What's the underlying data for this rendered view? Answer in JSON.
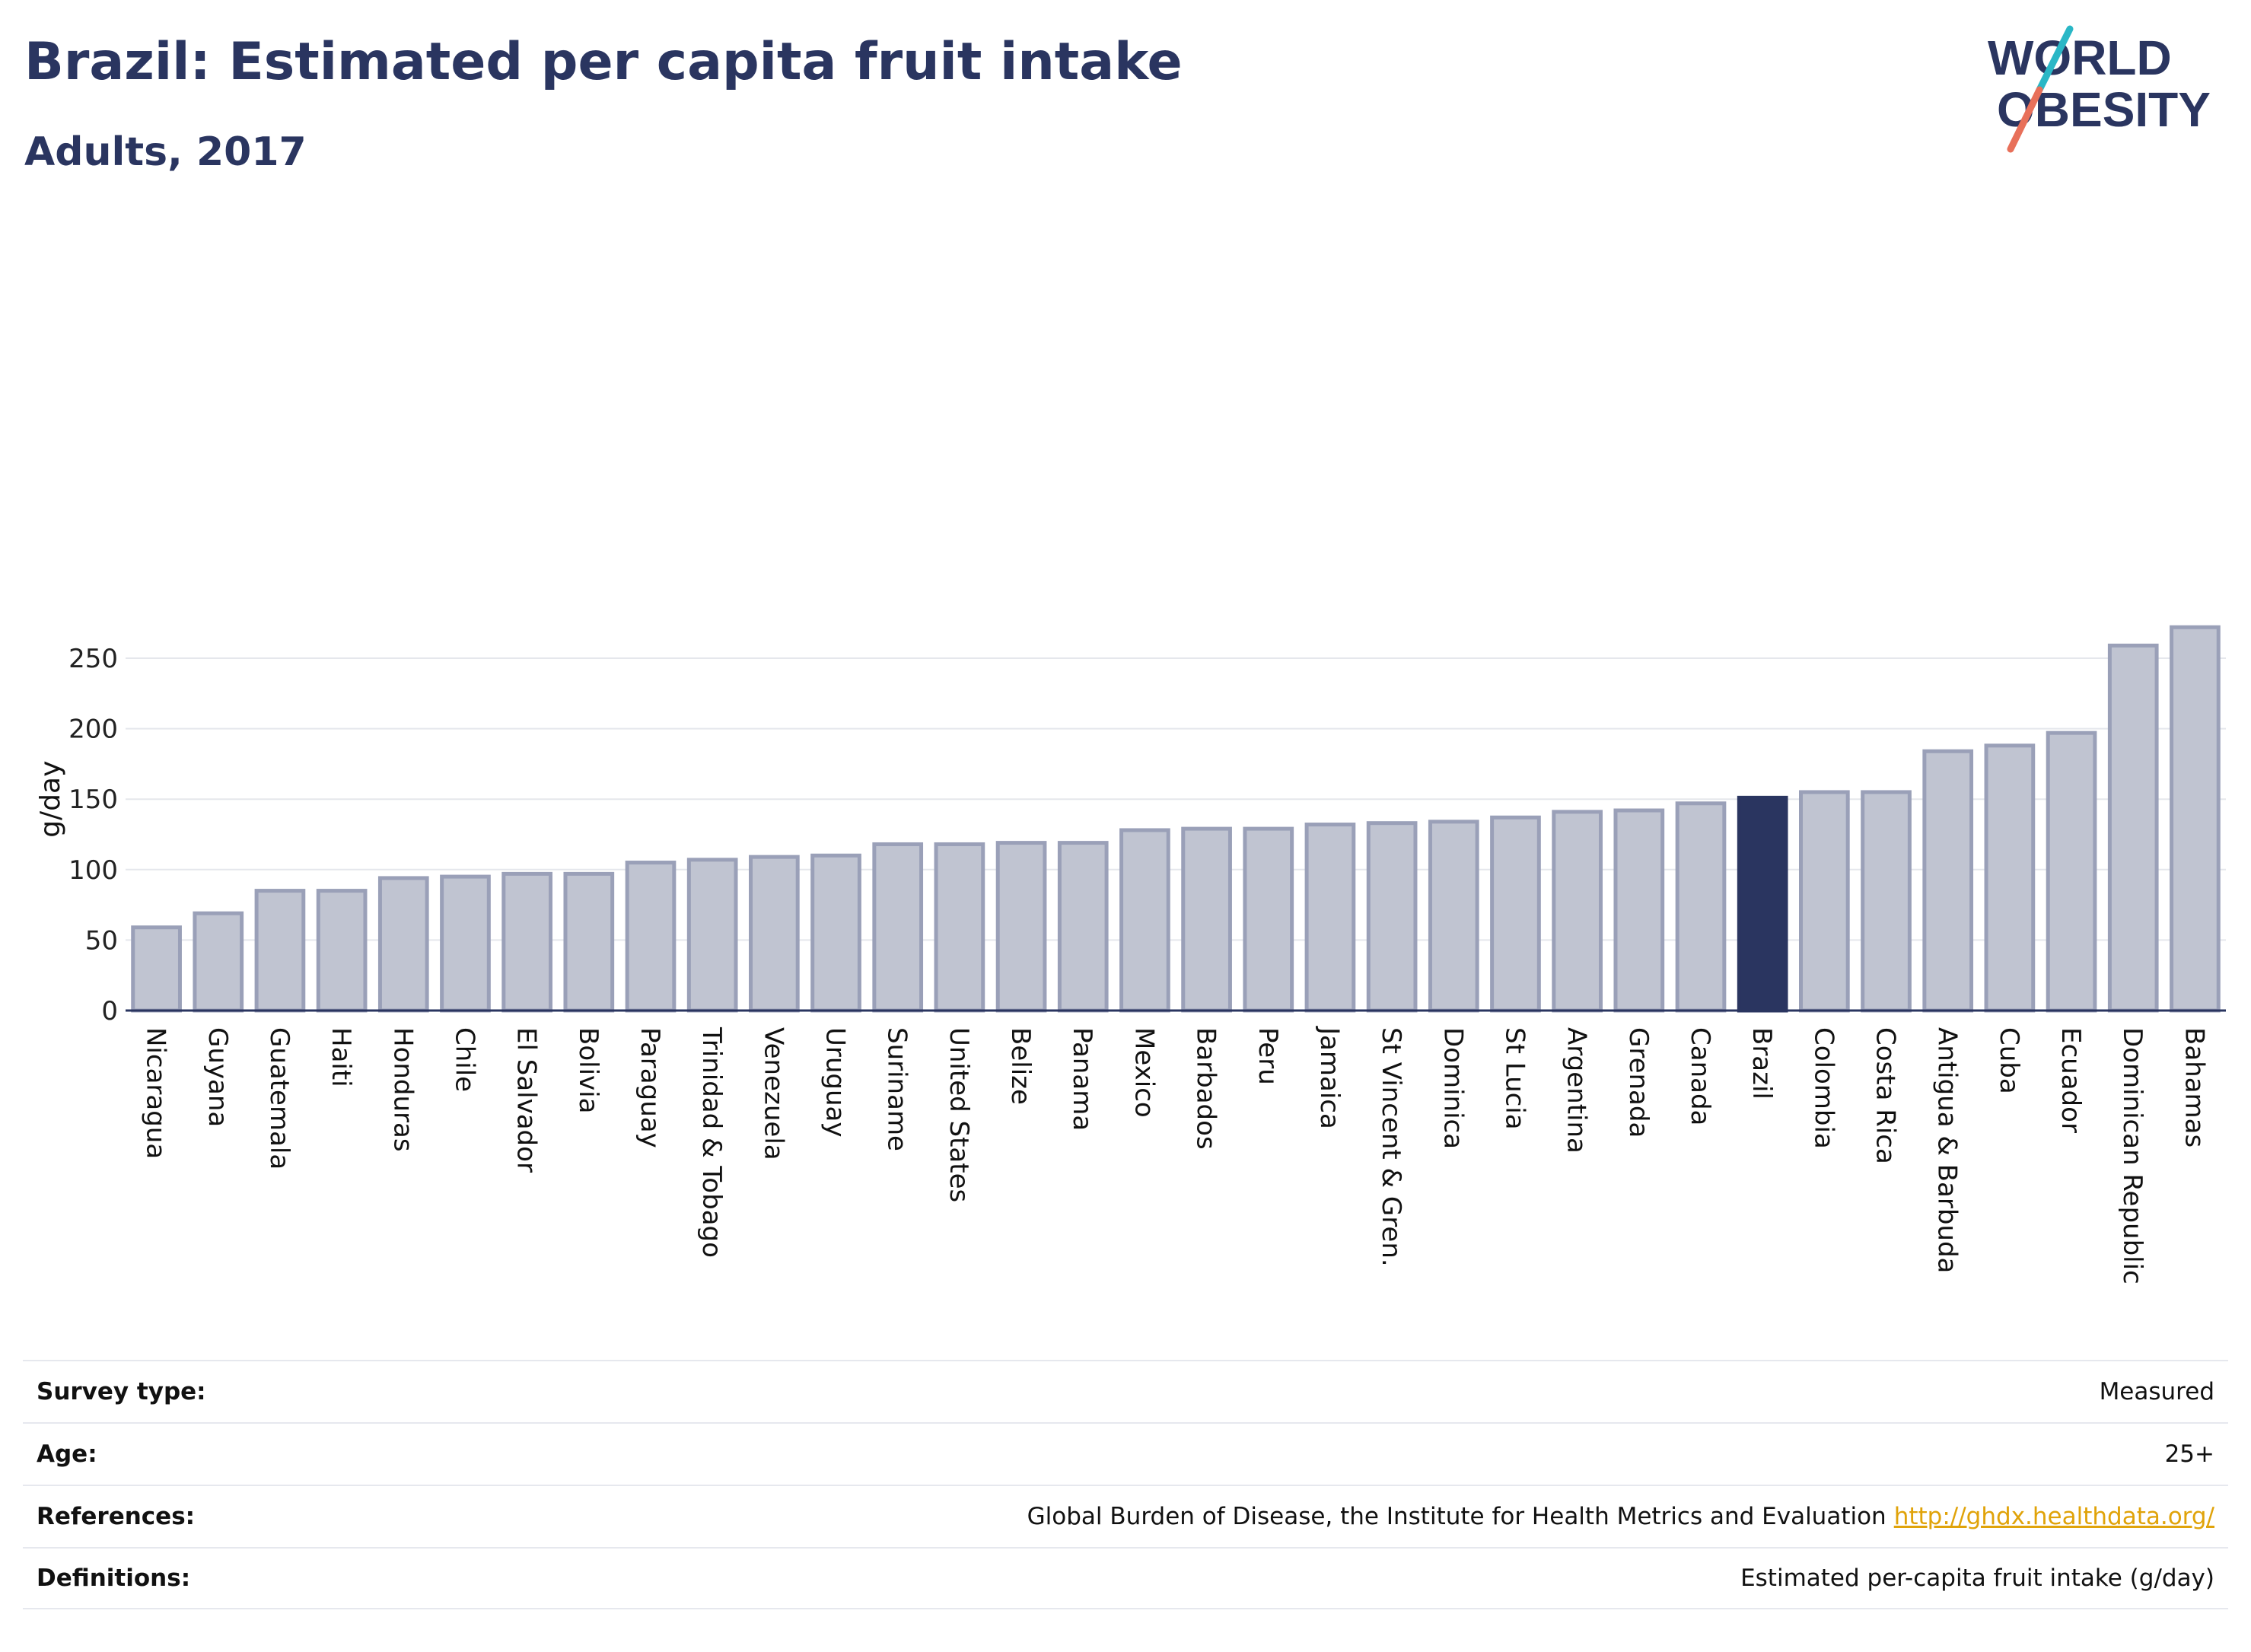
{
  "header": {
    "title": "Brazil: Estimated per capita fruit intake",
    "subtitle": "Adults, 2017"
  },
  "logo": {
    "line1": "WORLD",
    "line2": "OBESITY",
    "accent_colors": [
      "#2ab7c6",
      "#e8705a"
    ]
  },
  "chart_data": {
    "type": "bar",
    "title": "Brazil: Estimated per capita fruit intake",
    "subtitle": "Adults, 2017",
    "xlabel": "",
    "ylabel": "g/day",
    "ylim": [
      0,
      280
    ],
    "yticks": [
      0,
      50,
      100,
      150,
      200,
      250
    ],
    "grid": true,
    "highlight": "Brazil",
    "colors": {
      "bar": "#c0c4d1",
      "bar_border": "#9aa0b8",
      "highlight": "#2a3560"
    },
    "categories": [
      "Nicaragua",
      "Guyana",
      "Guatemala",
      "Haiti",
      "Honduras",
      "Chile",
      "El Salvador",
      "Bolivia",
      "Paraguay",
      "Trinidad & Tobago",
      "Venezuela",
      "Uruguay",
      "Suriname",
      "United States",
      "Belize",
      "Panama",
      "Mexico",
      "Barbados",
      "Peru",
      "Jamaica",
      "St Vincent & Gren.",
      "Dominica",
      "St Lucia",
      "Argentina",
      "Grenada",
      "Canada",
      "Brazil",
      "Colombia",
      "Costa Rica",
      "Antigua & Barbuda",
      "Cuba",
      "Ecuador",
      "Dominican Republic",
      "Bahamas"
    ],
    "values": [
      59,
      69,
      85,
      85,
      94,
      95,
      97,
      97,
      105,
      107,
      109,
      110,
      118,
      118,
      119,
      119,
      128,
      129,
      129,
      132,
      133,
      134,
      137,
      141,
      142,
      147,
      151,
      155,
      155,
      184,
      188,
      197,
      259,
      272
    ]
  },
  "info": {
    "rows": [
      {
        "key": "Survey type:",
        "value": "Measured"
      },
      {
        "key": "Age:",
        "value": "25+"
      },
      {
        "key": "References:",
        "value": "Global Burden of Disease, the Institute for Health Metrics and Evaluation",
        "link": "http://ghdx.healthdata.org/"
      },
      {
        "key": "Definitions:",
        "value": "Estimated per-capita fruit intake (g/day)"
      }
    ]
  }
}
